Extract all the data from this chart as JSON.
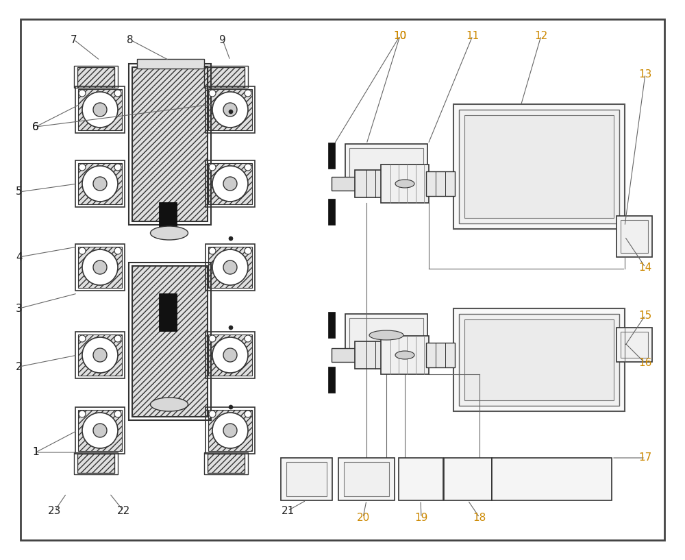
{
  "bg_color": "#ffffff",
  "line_color": "#555555",
  "dark_color": "#333333",
  "light_fill": "#f0f0f0",
  "hatch_fill": "#e0e0e0",
  "black_fill": "#111111",
  "orange_color": "#cc8800",
  "black_color": "#222222",
  "label_data": {
    "black_labels": [
      "1",
      "2",
      "3",
      "4",
      "5",
      "6",
      "7",
      "8",
      "9",
      "21",
      "22",
      "23"
    ],
    "orange_labels": [
      "10",
      "11",
      "12",
      "13",
      "14",
      "15",
      "16",
      "17",
      "18",
      "19",
      "20"
    ]
  }
}
